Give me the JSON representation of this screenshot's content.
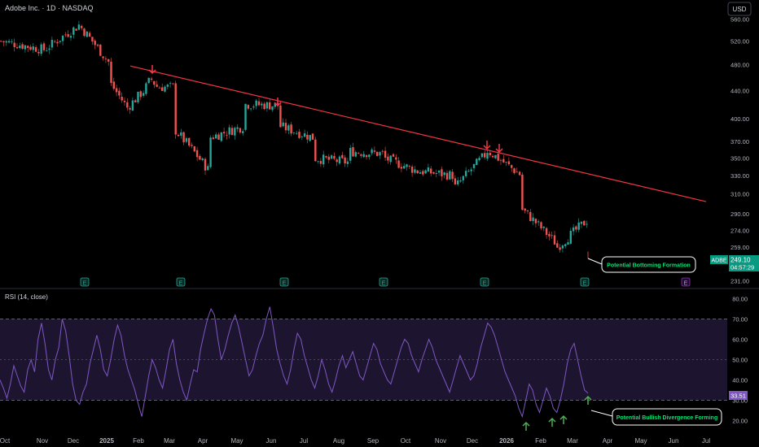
{
  "header": {
    "symbol_line": "Adobe Inc. · 1D · NASDAQ",
    "currency_button": "USD"
  },
  "price_panel": {
    "ticker_badge": "ADBE",
    "last_price": "249.10",
    "countdown": "04:57:29",
    "annotation": "Potential Bottoming Formation",
    "earnings_marker": "E"
  },
  "rsi_panel": {
    "title": "RSI (14, close)",
    "last_value": "33.51",
    "annotation": "Potential Bullish Divergence Forming"
  },
  "colors": {
    "up": "#26a69a",
    "down": "#ef5350",
    "trendline": "#f23645",
    "rsi_line": "#7e57c2",
    "rsi_band": "#1d1530",
    "bottom_marker": "#4caf50",
    "top_marker": "#f23645",
    "badge": "#089981"
  },
  "chart_data": [
    {
      "type": "candlestick",
      "title": "Adobe Inc. · 1D · NASDAQ",
      "y_axis_ticks": [
        560,
        520,
        480,
        440,
        400,
        370,
        350,
        330,
        310,
        290,
        274,
        259,
        231
      ],
      "x_axis_ticks": [
        "Oct",
        "Nov",
        "Dec",
        "2025",
        "Feb",
        "Mar",
        "Apr",
        "May",
        "Jun",
        "Jul",
        "Aug",
        "Sep",
        "Oct",
        "Nov",
        "Dec",
        "2026",
        "Feb",
        "Mar",
        "Apr",
        "May",
        "Jun",
        "Jul"
      ],
      "ylim": [
        225,
        575
      ],
      "scale": "log",
      "path_points": [
        [
          "Oct",
          520
        ],
        [
          "Nov",
          505
        ],
        [
          "Dec",
          545
        ],
        [
          "Dec",
          555
        ],
        [
          "2025",
          480
        ],
        [
          "2025",
          450
        ],
        [
          "Jan",
          415
        ],
        [
          "Jan",
          440
        ],
        [
          "Feb",
          458
        ],
        [
          "Feb",
          445
        ],
        [
          "Mar",
          445
        ],
        [
          "Mar",
          385
        ],
        [
          "Apr",
          335
        ],
        [
          "Apr",
          375
        ],
        [
          "May",
          390
        ],
        [
          "May",
          420
        ],
        [
          "Jun",
          418
        ],
        [
          "Jun",
          390
        ],
        [
          "Jul",
          375
        ],
        [
          "Jul",
          350
        ],
        [
          "Aug",
          345
        ],
        [
          "Aug",
          358
        ],
        [
          "Sep",
          355
        ],
        [
          "Sep",
          350
        ],
        [
          "Oct",
          335
        ],
        [
          "Nov",
          330
        ],
        [
          "Nov",
          315
        ],
        [
          "Dec",
          355
        ],
        [
          "Dec",
          360
        ],
        [
          "2026",
          330
        ],
        [
          "2026",
          295
        ],
        [
          "Feb",
          262
        ],
        [
          "Feb",
          258
        ],
        [
          "Mar",
          285
        ],
        [
          "Mar",
          249
        ]
      ],
      "last_price": 249.1,
      "trendline": [
        [
          "Feb",
          478
        ],
        [
          "Jul",
          302
        ]
      ],
      "resistance_touches": [
        "Feb",
        "Jun",
        "Dec",
        "Dec"
      ],
      "earnings_dates": [
        "Dec",
        "Mar",
        "Jun",
        "Sep",
        "Dec",
        "Mar",
        "Jun"
      ]
    },
    {
      "type": "line",
      "title": "RSI (14, close)",
      "y_axis_ticks": [
        80,
        70,
        60,
        50,
        40,
        30,
        20
      ],
      "ylim": [
        15,
        83
      ],
      "band": [
        30,
        70
      ],
      "midline": 50,
      "x_axis_ticks": [
        "Oct",
        "Nov",
        "Dec",
        "2025",
        "Feb",
        "Mar",
        "Apr",
        "May",
        "Jun",
        "Jul",
        "Aug",
        "Sep",
        "Oct",
        "Nov",
        "Dec",
        "2026",
        "Feb",
        "Mar",
        "Apr",
        "May",
        "Jun",
        "Jul"
      ],
      "values": [
        40,
        36,
        31,
        38,
        47,
        42,
        37,
        34,
        45,
        50,
        44,
        60,
        68,
        58,
        45,
        40,
        50,
        56,
        70,
        64,
        52,
        38,
        30,
        28,
        34,
        38,
        48,
        55,
        62,
        55,
        45,
        42,
        50,
        60,
        67,
        62,
        52,
        45,
        40,
        35,
        28,
        22,
        32,
        42,
        50,
        46,
        40,
        36,
        45,
        55,
        60,
        48,
        40,
        34,
        30,
        38,
        45,
        44,
        55,
        63,
        70,
        75,
        72,
        60,
        50,
        55,
        62,
        68,
        72,
        66,
        58,
        50,
        42,
        45,
        52,
        58,
        62,
        70,
        76,
        66,
        55,
        48,
        42,
        38,
        45,
        55,
        63,
        60,
        52,
        46,
        40,
        36,
        42,
        50,
        45,
        38,
        34,
        40,
        47,
        52,
        46,
        50,
        54,
        48,
        42,
        40,
        46,
        52,
        58,
        55,
        48,
        44,
        40,
        38,
        44,
        50,
        56,
        60,
        58,
        52,
        48,
        44,
        50,
        55,
        60,
        56,
        50,
        46,
        42,
        38,
        34,
        40,
        46,
        52,
        48,
        44,
        40,
        42,
        48,
        56,
        62,
        68,
        66,
        62,
        56,
        50,
        44,
        40,
        36,
        32,
        26,
        22,
        30,
        38,
        35,
        28,
        24,
        30,
        36,
        32,
        26,
        24,
        30,
        38,
        48,
        55,
        58,
        50,
        42,
        35,
        33.51
      ],
      "last_value": 33.51,
      "bullish_markers_at": [
        "Feb",
        "Feb",
        "Feb"
      ]
    }
  ]
}
